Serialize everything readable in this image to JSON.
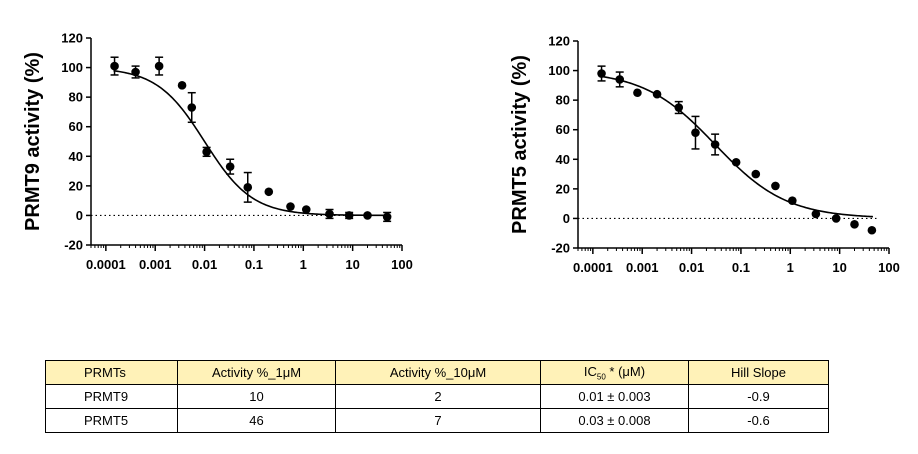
{
  "chart_data": [
    {
      "type": "scatter",
      "ylabel": "PRMT9 activity (%)",
      "xscale": "log",
      "xlim": [
        5e-05,
        100
      ],
      "ylim": [
        -20,
        120
      ],
      "xticks": [
        "0.0001",
        "0.001",
        "0.01",
        "0.1",
        "1",
        "10",
        "100"
      ],
      "yticks": [
        "120",
        "100",
        "80",
        "60",
        "40",
        "20",
        "0",
        "-20"
      ],
      "points": [
        {
          "x": 0.00015,
          "y": 101,
          "err": 6
        },
        {
          "x": 0.0004,
          "y": 97,
          "err": 4
        },
        {
          "x": 0.0012,
          "y": 101,
          "err": 6
        },
        {
          "x": 0.0035,
          "y": 88,
          "err": 0
        },
        {
          "x": 0.0055,
          "y": 73,
          "err": 10
        },
        {
          "x": 0.011,
          "y": 43,
          "err": 3
        },
        {
          "x": 0.033,
          "y": 33,
          "err": 5
        },
        {
          "x": 0.075,
          "y": 19,
          "err": 10
        },
        {
          "x": 0.2,
          "y": 16,
          "err": 0
        },
        {
          "x": 0.55,
          "y": 6,
          "err": 0
        },
        {
          "x": 1.15,
          "y": 4,
          "err": 0
        },
        {
          "x": 3.4,
          "y": 1,
          "err": 3
        },
        {
          "x": 8.5,
          "y": 0,
          "err": 2
        },
        {
          "x": 20,
          "y": 0,
          "err": 0
        },
        {
          "x": 50,
          "y": -1,
          "err": 3
        }
      ],
      "fit": {
        "top": 100,
        "bottom": 0,
        "ic50": 0.01,
        "hill": -0.9
      },
      "zero_line": true
    },
    {
      "type": "scatter",
      "ylabel": "PRMT5 activity (%)",
      "xscale": "log",
      "xlim": [
        5e-05,
        100
      ],
      "ylim": [
        -20,
        120
      ],
      "xticks": [
        "0.0001",
        "0.001",
        "0.01",
        "0.1",
        "1",
        "10",
        "100"
      ],
      "yticks": [
        "120",
        "100",
        "80",
        "60",
        "40",
        "20",
        "0",
        "-20"
      ],
      "points": [
        {
          "x": 0.00015,
          "y": 98,
          "err": 5
        },
        {
          "x": 0.00035,
          "y": 94,
          "err": 5
        },
        {
          "x": 0.0008,
          "y": 85,
          "err": 0
        },
        {
          "x": 0.002,
          "y": 84,
          "err": 0
        },
        {
          "x": 0.0055,
          "y": 75,
          "err": 4
        },
        {
          "x": 0.012,
          "y": 58,
          "err": 11
        },
        {
          "x": 0.03,
          "y": 50,
          "err": 7
        },
        {
          "x": 0.08,
          "y": 38,
          "err": 0
        },
        {
          "x": 0.2,
          "y": 30,
          "err": 0
        },
        {
          "x": 0.5,
          "y": 22,
          "err": 0
        },
        {
          "x": 1.1,
          "y": 12,
          "err": 0
        },
        {
          "x": 3.3,
          "y": 3,
          "err": 0
        },
        {
          "x": 8.5,
          "y": 0,
          "err": 0
        },
        {
          "x": 20,
          "y": -4,
          "err": 0
        },
        {
          "x": 45,
          "y": -8,
          "err": 0
        }
      ],
      "fit": {
        "top": 100,
        "bottom": 0,
        "ic50": 0.03,
        "hill": -0.6
      },
      "zero_line": true
    }
  ],
  "table": {
    "headers": [
      "PRMTs",
      "Activity %_1μM",
      "Activity %_10μM",
      "IC",
      "Hill Slope"
    ],
    "ic50_sub": "50",
    "ic50_rest": " * (μM)",
    "rows": [
      [
        "PRMT9",
        "10",
        "2",
        "0.01 ± 0.003",
        "-0.9"
      ],
      [
        "PRMT5",
        "46",
        "7",
        "0.03 ± 0.008",
        "-0.6"
      ]
    ]
  },
  "colors": {
    "header_bg": "#fff2b8",
    "ink": "#000000"
  }
}
